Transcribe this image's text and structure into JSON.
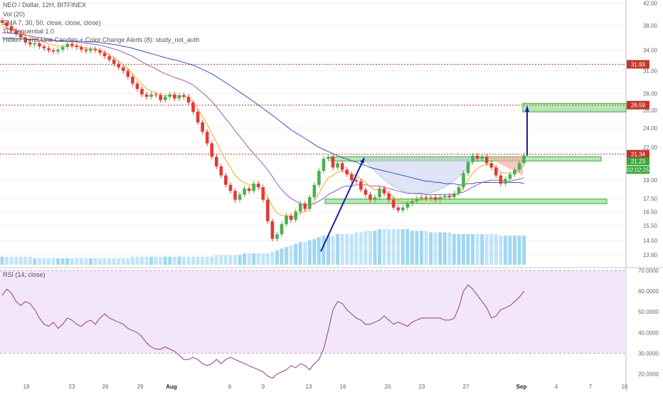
{
  "header": {
    "symbol_line": "NEO / Dollar, 12H, BITFINEX",
    "vol_line": "Vol (20)",
    "ema_line": "EMA 7, 30, 50, close, close, close)",
    "seq_line": "TD Sequential 1.0",
    "candles_line": "Heikin Trend Line Candles + Color Change Alerts (8): study_not_auth"
  },
  "rsi_panel": {
    "label": "RSI (14, close)"
  },
  "colors": {
    "up": "#4caf50",
    "down": "#e53935",
    "ema_fast": "#f5a623",
    "ema_mid": "#9b59b6",
    "ema_slow": "#3f51b5",
    "rsi_line": "#8e3f73",
    "rsi_bg": "#f3e6fb",
    "volume": "#8fd0f0",
    "level_line": "#c0392b",
    "zone_green": "#7ed67e",
    "arrow": "#1a1aa8",
    "cup_fill": "#c9d4f0"
  },
  "chart_data": [
    {
      "type": "candlestick",
      "title": "NEO / Dollar, 12H, BITFINEX",
      "yscale": "log",
      "ylim": [
        13.0,
        42.6
      ],
      "yticks": [
        "42.00",
        "38.00",
        "34.00",
        "31.00",
        "28.00",
        "26.00",
        "24.00",
        "22.00",
        "19.00",
        "17.50",
        "16.50",
        "15.50",
        "14.50",
        "13.60"
      ],
      "x_tick_labels": [
        "19",
        "23",
        "26",
        "29",
        "Aug",
        "6",
        "9",
        "13",
        "16",
        "20",
        "23",
        "27",
        "Sep",
        "4",
        "7",
        "10"
      ],
      "price_levels": [
        {
          "label": "31.93",
          "value": 31.93,
          "style": "dotted"
        },
        {
          "label": "26.59",
          "value": 26.59,
          "style": "dotted"
        },
        {
          "label": "21.34",
          "value": 21.34,
          "style": "dotted"
        }
      ],
      "last_price": {
        "value": "21.23",
        "countdown": "02:02:25"
      },
      "zones": [
        {
          "name": "neckline",
          "low": 20.7,
          "high": 21.1
        },
        {
          "name": "cup_base",
          "low": 17.1,
          "high": 17.45
        },
        {
          "name": "target",
          "low": 25.8,
          "high": 26.8
        }
      ],
      "close_series": [
        38.5,
        37.9,
        37.1,
        36.6,
        36.0,
        35.2,
        34.9,
        35.1,
        34.6,
        34.3,
        34.0,
        33.8,
        34.1,
        34.5,
        35.0,
        34.7,
        34.5,
        34.1,
        33.9,
        34.2,
        34.0,
        33.6,
        33.1,
        32.6,
        32.0,
        31.5,
        31.0,
        30.2,
        29.3,
        28.6,
        27.9,
        27.6,
        27.9,
        27.8,
        27.2,
        27.6,
        27.9,
        27.4,
        27.8,
        27.6,
        26.9,
        25.8,
        24.6,
        23.6,
        22.4,
        21.1,
        20.2,
        19.4,
        18.6,
        18.1,
        17.4,
        17.8,
        18.3,
        18.1,
        18.7,
        18.4,
        17.4,
        15.8,
        14.6,
        14.9,
        15.6,
        16.2,
        15.9,
        16.5,
        17.1,
        16.7,
        17.6,
        18.6,
        19.8,
        20.9,
        21.1,
        20.1,
        20.5,
        19.9,
        19.5,
        19.0,
        18.9,
        18.2,
        17.8,
        17.4,
        17.6,
        18.3,
        17.9,
        17.4,
        16.8,
        16.6,
        16.8,
        17.1,
        17.3,
        17.5,
        17.6,
        17.5,
        17.6,
        17.4,
        17.6,
        17.7,
        17.6,
        17.9,
        18.4,
        19.6,
        20.6,
        21.2,
        20.9,
        21.1,
        20.5,
        20.1,
        19.4,
        18.7,
        19.1,
        19.5,
        19.9,
        20.5,
        21.23
      ],
      "ema_fast": [
        37.8,
        37.6,
        37.4,
        37.2,
        36.9,
        36.5,
        36.1,
        35.9,
        35.6,
        35.3,
        35.0,
        34.8,
        34.7,
        34.6,
        34.7,
        34.7,
        34.7,
        34.5,
        34.3,
        34.3,
        34.2,
        34.0,
        33.7,
        33.3,
        32.9,
        32.4,
        31.9,
        31.3,
        30.6,
        29.9,
        29.2,
        28.6,
        28.3,
        28.1,
        27.8,
        27.7,
        27.8,
        27.7,
        27.7,
        27.7,
        27.5,
        26.9,
        26.1,
        25.3,
        24.4,
        23.4,
        22.5,
        21.6,
        20.8,
        20.1,
        19.4,
        19.0,
        18.8,
        18.6,
        18.6,
        18.5,
        18.2,
        17.6,
        16.9,
        16.4,
        16.2,
        16.2,
        16.1,
        16.2,
        16.4,
        16.5,
        16.8,
        17.3,
        17.9,
        18.6,
        19.2,
        19.4,
        19.7,
        19.8,
        19.7,
        19.5,
        19.4,
        19.1,
        18.8,
        18.4,
        18.2,
        18.2,
        18.1,
        17.9,
        17.6,
        17.3,
        17.2,
        17.2,
        17.2,
        17.3,
        17.4,
        17.4,
        17.5,
        17.5,
        17.5,
        17.6,
        17.6,
        17.7,
        17.9,
        18.4,
        19.0,
        19.6,
        20.0,
        20.3,
        20.4,
        20.3,
        20.1,
        19.7,
        19.6,
        19.6,
        19.7,
        19.9,
        20.3
      ],
      "ema_mid": [
        36.8,
        36.8,
        36.7,
        36.6,
        36.5,
        36.4,
        36.3,
        36.1,
        36.0,
        35.9,
        35.8,
        35.6,
        35.5,
        35.4,
        35.4,
        35.3,
        35.3,
        35.2,
        35.1,
        35.0,
        34.9,
        34.8,
        34.6,
        34.4,
        34.2,
        34.0,
        33.7,
        33.4,
        33.1,
        32.7,
        32.3,
        31.9,
        31.6,
        31.3,
        30.9,
        30.6,
        30.4,
        30.1,
        29.9,
        29.7,
        29.4,
        29.1,
        28.6,
        28.1,
        27.6,
        27.0,
        26.4,
        25.7,
        25.0,
        24.4,
        23.7,
        23.1,
        22.5,
        21.9,
        21.4,
        20.9,
        20.4,
        19.9,
        19.3,
        18.7,
        18.2,
        17.8,
        17.5,
        17.3,
        17.1,
        17.0,
        17.0,
        17.1,
        17.3,
        17.5,
        17.8,
        18.0,
        18.2,
        18.4,
        18.5,
        18.5,
        18.6,
        18.6,
        18.6,
        18.5,
        18.5,
        18.5,
        18.4,
        18.3,
        18.2,
        18.1,
        18.0,
        17.9,
        17.9,
        17.9,
        17.9,
        17.8,
        17.8,
        17.8,
        17.8,
        17.8,
        17.8,
        17.8,
        17.9,
        18.0,
        18.2,
        18.4,
        18.6,
        18.8,
        18.9,
        19.0,
        19.0,
        19.0,
        18.9,
        18.9,
        19.0,
        19.1,
        19.2
      ],
      "ema_slow": [
        35.9,
        35.9,
        35.9,
        35.8,
        35.8,
        35.7,
        35.7,
        35.7,
        35.6,
        35.6,
        35.6,
        35.5,
        35.5,
        35.5,
        35.4,
        35.4,
        35.4,
        35.4,
        35.3,
        35.3,
        35.3,
        35.2,
        35.1,
        35.0,
        34.9,
        34.8,
        34.6,
        34.5,
        34.3,
        34.1,
        33.9,
        33.7,
        33.5,
        33.3,
        33.1,
        32.9,
        32.7,
        32.6,
        32.4,
        32.2,
        32.0,
        31.8,
        31.5,
        31.2,
        30.9,
        30.6,
        30.2,
        29.8,
        29.4,
        29.0,
        28.6,
        28.2,
        27.8,
        27.4,
        27.0,
        26.6,
        26.2,
        25.8,
        25.4,
        25.0,
        24.6,
        24.2,
        23.8,
        23.5,
        23.2,
        22.9,
        22.6,
        22.3,
        22.0,
        21.8,
        21.6,
        21.4,
        21.2,
        21.0,
        20.9,
        20.7,
        20.6,
        20.4,
        20.3,
        20.1,
        20.0,
        19.9,
        19.8,
        19.7,
        19.6,
        19.5,
        19.4,
        19.3,
        19.2,
        19.1,
        19.0,
        18.9,
        18.9,
        18.8,
        18.8,
        18.7,
        18.7,
        18.7,
        18.6,
        18.6,
        18.7,
        18.7,
        18.8,
        18.8,
        18.8,
        18.8,
        18.8,
        18.8,
        18.8,
        18.8,
        18.8,
        18.8,
        18.7
      ],
      "volume": [
        5,
        5,
        5,
        5,
        5,
        5,
        5,
        4,
        4,
        4,
        4,
        4,
        4,
        4,
        4,
        4,
        4,
        4,
        4,
        4,
        4,
        4,
        4,
        4,
        4,
        4,
        4,
        4,
        5,
        5,
        5,
        5,
        5,
        5,
        5,
        5,
        5,
        5,
        5,
        5,
        5,
        5,
        5,
        5,
        5,
        5,
        6,
        6,
        6,
        6,
        6,
        6,
        7,
        7,
        7,
        7,
        7,
        7,
        8,
        9,
        10,
        11,
        12,
        13,
        14,
        14,
        15,
        16,
        17,
        18,
        18,
        18,
        19,
        19,
        19,
        19,
        20,
        20,
        21,
        21,
        21,
        22,
        22,
        22,
        22,
        22,
        22,
        22,
        21,
        21,
        21,
        21,
        20,
        20,
        20,
        20,
        20,
        19,
        19,
        19,
        19,
        19,
        19,
        19,
        19,
        19,
        19,
        18,
        18,
        18,
        18,
        18,
        18
      ],
      "x_label_positions": "candles"
    },
    {
      "type": "line",
      "title": "RSI (14, close)",
      "ylim": [
        15,
        70
      ],
      "yticks": [
        "70.0000",
        "60.0000",
        "50.0000",
        "40.0000",
        "30.0000",
        "20.0000"
      ],
      "bands": [
        30,
        70
      ],
      "values": [
        58,
        61,
        59,
        55,
        53,
        55,
        54,
        51,
        47,
        44,
        43,
        45,
        42,
        44,
        47,
        46,
        44,
        43,
        45,
        46,
        44,
        47,
        49,
        47,
        46,
        45,
        44,
        42,
        41,
        40,
        38,
        35,
        33,
        32,
        32,
        33,
        32,
        31,
        29,
        27,
        27,
        28,
        27,
        25,
        24,
        25,
        27,
        25,
        27,
        28,
        27,
        26,
        25,
        24,
        23,
        22,
        21,
        19,
        18,
        20,
        21,
        22,
        24,
        23,
        25,
        24,
        22,
        25,
        27,
        32,
        41,
        51,
        55,
        54,
        51,
        49,
        47,
        46,
        44,
        44,
        45,
        46,
        48,
        46,
        44,
        45,
        44,
        43,
        45,
        46,
        47,
        47,
        47,
        47,
        47,
        46,
        46,
        47,
        52,
        60,
        63,
        61,
        58,
        55,
        52,
        47,
        48,
        51,
        52,
        53,
        55,
        57,
        60
      ]
    }
  ]
}
